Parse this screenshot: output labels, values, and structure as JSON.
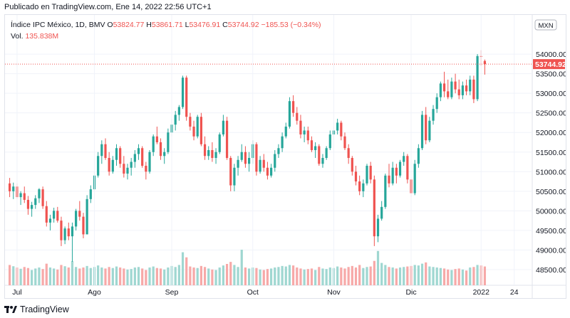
{
  "publisher": "Publicado en TradingView.com, Ene 14, 2022 22:56 UTC+1",
  "footer": {
    "brand": "TradingView"
  },
  "legend": {
    "symbol": "Índice IPC México, 1D, BMV",
    "o_label": "O",
    "o_value": "53824.77",
    "h_label": "H",
    "h_value": "53861.71",
    "l_label": "L",
    "l_value": "53476.91",
    "c_label": "C",
    "c_value": "53744.92",
    "change": "−185.53 (−0.34%)",
    "vol_label": "Vol.",
    "vol_value": "135.838M"
  },
  "colors": {
    "up": "#26a69a",
    "down": "#ef5350",
    "up_vol": "#9fd7d1",
    "down_vol": "#f7a9a8",
    "grid": "#f0f3fa",
    "axis_text": "#131722"
  },
  "chart_data": {
    "type": "candlestick",
    "title": "Índice IPC México, 1D, BMV",
    "currency": "MXN",
    "last_price": "53744.92",
    "ylim": [
      48100,
      55000
    ],
    "y_ticks": [
      "48500.00",
      "49000.00",
      "49500.00",
      "50000.00",
      "50500.00",
      "51000.00",
      "51500.00",
      "52000.00",
      "52500.00",
      "53000.00",
      "53500.00",
      "54000.00"
    ],
    "x_ticks": [
      "Jul",
      "Ago",
      "Sep",
      "Oct",
      "Nov",
      "Dic",
      "2022",
      "24"
    ],
    "grid": true,
    "candles": [
      [
        50700,
        50840,
        50350,
        50500,
        80
      ],
      [
        50500,
        50720,
        50300,
        50620,
        75
      ],
      [
        50620,
        50700,
        50300,
        50350,
        70
      ],
      [
        50350,
        50500,
        50150,
        50450,
        65
      ],
      [
        50450,
        50620,
        50200,
        50280,
        72
      ],
      [
        50280,
        50380,
        49900,
        50050,
        68
      ],
      [
        50050,
        50230,
        49850,
        50150,
        60
      ],
      [
        50150,
        50400,
        50050,
        50320,
        66
      ],
      [
        50320,
        50580,
        50200,
        50550,
        70
      ],
      [
        50550,
        50620,
        50050,
        50120,
        64
      ],
      [
        50120,
        50250,
        49600,
        49700,
        85
      ],
      [
        49700,
        49900,
        49500,
        49800,
        70
      ],
      [
        49800,
        50080,
        49700,
        50000,
        66
      ],
      [
        50000,
        50100,
        49700,
        49750,
        62
      ],
      [
        49750,
        49850,
        49100,
        49250,
        80
      ],
      [
        49250,
        49600,
        49150,
        49550,
        75
      ],
      [
        49550,
        49700,
        49250,
        49350,
        70
      ],
      [
        49350,
        49700,
        48700,
        49600,
        95
      ],
      [
        49600,
        50050,
        49500,
        50000,
        72
      ],
      [
        50000,
        50250,
        49750,
        49850,
        66
      ],
      [
        49850,
        49950,
        49300,
        49400,
        70
      ],
      [
        49400,
        50400,
        49400,
        50300,
        76
      ],
      [
        50300,
        50650,
        50200,
        50550,
        68
      ],
      [
        50550,
        51000,
        50500,
        50900,
        72
      ],
      [
        50900,
        51500,
        50850,
        51400,
        78
      ],
      [
        51400,
        51800,
        51200,
        51700,
        70
      ],
      [
        51700,
        51850,
        51300,
        51350,
        66
      ],
      [
        51350,
        51500,
        50900,
        51000,
        72
      ],
      [
        51000,
        51400,
        50950,
        51300,
        68
      ],
      [
        51300,
        51700,
        51150,
        51600,
        74
      ],
      [
        51600,
        51650,
        51100,
        51200,
        70
      ],
      [
        51200,
        51400,
        50850,
        50950,
        66
      ],
      [
        50950,
        51200,
        50800,
        51100,
        62
      ],
      [
        51100,
        51350,
        50900,
        51250,
        64
      ],
      [
        51250,
        51550,
        51100,
        51450,
        70
      ],
      [
        51450,
        51700,
        51300,
        51600,
        72
      ],
      [
        51600,
        51650,
        51100,
        51150,
        66
      ],
      [
        51150,
        51250,
        50800,
        51000,
        60
      ],
      [
        51000,
        51550,
        50950,
        51500,
        70
      ],
      [
        51500,
        51950,
        51400,
        51900,
        74
      ],
      [
        51900,
        52150,
        51700,
        51750,
        68
      ],
      [
        51750,
        51850,
        51300,
        51400,
        66
      ],
      [
        51400,
        51600,
        51200,
        51500,
        62
      ],
      [
        51500,
        52100,
        51450,
        52000,
        70
      ],
      [
        52000,
        52350,
        51900,
        52200,
        76
      ],
      [
        52200,
        52550,
        52050,
        52450,
        72
      ],
      [
        52450,
        52700,
        52300,
        52650,
        80
      ],
      [
        52650,
        53450,
        52600,
        53400,
        130
      ],
      [
        53400,
        53450,
        52300,
        52400,
        110
      ],
      [
        52400,
        52500,
        52050,
        52150,
        74
      ],
      [
        52150,
        52300,
        51800,
        51900,
        70
      ],
      [
        51900,
        52450,
        51850,
        52400,
        68
      ],
      [
        52400,
        52500,
        51650,
        51700,
        76
      ],
      [
        51700,
        51900,
        51300,
        51400,
        72
      ],
      [
        51400,
        51650,
        51300,
        51550,
        66
      ],
      [
        51550,
        51750,
        51250,
        51350,
        62
      ],
      [
        51350,
        51600,
        51200,
        51500,
        60
      ],
      [
        51500,
        52000,
        51450,
        51950,
        70
      ],
      [
        51950,
        52450,
        51900,
        52300,
        78
      ],
      [
        52300,
        52400,
        51300,
        51350,
        84
      ],
      [
        51350,
        51400,
        50500,
        50650,
        92
      ],
      [
        50650,
        51200,
        50500,
        51100,
        80
      ],
      [
        51100,
        51400,
        50900,
        51300,
        72
      ],
      [
        51300,
        51700,
        51250,
        51500,
        140
      ],
      [
        51500,
        51650,
        51100,
        51200,
        70
      ],
      [
        51200,
        51500,
        51000,
        51350,
        66
      ],
      [
        51350,
        51800,
        51200,
        51700,
        70
      ],
      [
        51700,
        51750,
        50900,
        51000,
        68
      ],
      [
        51000,
        51400,
        50950,
        51300,
        62
      ],
      [
        51300,
        51450,
        51000,
        51100,
        60
      ],
      [
        51100,
        51250,
        50800,
        50900,
        64
      ],
      [
        50900,
        51200,
        50850,
        51100,
        66
      ],
      [
        51100,
        51550,
        51000,
        51450,
        70
      ],
      [
        51450,
        51700,
        51350,
        51600,
        72
      ],
      [
        51600,
        52000,
        51500,
        51900,
        76
      ],
      [
        51900,
        52250,
        51850,
        52150,
        74
      ],
      [
        52150,
        52900,
        52100,
        52800,
        80
      ],
      [
        52800,
        52950,
        52400,
        52500,
        78
      ],
      [
        52500,
        52650,
        52200,
        52300,
        70
      ],
      [
        52300,
        52450,
        51850,
        51950,
        66
      ],
      [
        51950,
        52150,
        51750,
        52050,
        62
      ],
      [
        52050,
        52150,
        51700,
        51800,
        64
      ],
      [
        51800,
        51900,
        51500,
        51550,
        66
      ],
      [
        51550,
        51750,
        51350,
        51650,
        60
      ],
      [
        51650,
        51700,
        51150,
        51200,
        72
      ],
      [
        51200,
        51450,
        51100,
        51350,
        66
      ],
      [
        51350,
        51650,
        51300,
        51600,
        64
      ],
      [
        51600,
        52050,
        51550,
        51950,
        70
      ],
      [
        51950,
        52150,
        51800,
        52050,
        68
      ],
      [
        52050,
        52350,
        51950,
        52250,
        74
      ],
      [
        52250,
        52300,
        51800,
        51900,
        70
      ],
      [
        51900,
        52000,
        51550,
        51600,
        66
      ],
      [
        51600,
        51700,
        51200,
        51350,
        72
      ],
      [
        51350,
        51400,
        50900,
        51000,
        76
      ],
      [
        51000,
        51150,
        50650,
        50750,
        70
      ],
      [
        50750,
        50900,
        50400,
        50500,
        80
      ],
      [
        50500,
        50800,
        50350,
        50700,
        68
      ],
      [
        50700,
        51200,
        50650,
        51150,
        72
      ],
      [
        51150,
        51250,
        50700,
        50800,
        74
      ],
      [
        50800,
        50900,
        49100,
        49350,
        96
      ],
      [
        49350,
        49900,
        49200,
        49800,
        135
      ],
      [
        49800,
        50250,
        49750,
        50100,
        88
      ],
      [
        50100,
        50950,
        50050,
        50900,
        80
      ],
      [
        50900,
        51200,
        50600,
        50700,
        72
      ],
      [
        50700,
        51250,
        50650,
        51100,
        70
      ],
      [
        51100,
        51200,
        50700,
        50900,
        66
      ],
      [
        50900,
        51300,
        50850,
        51250,
        70
      ],
      [
        51250,
        51500,
        51150,
        51400,
        72
      ],
      [
        51400,
        51450,
        50700,
        50800,
        74
      ],
      [
        50800,
        50850,
        50350,
        50450,
        76
      ],
      [
        50450,
        51300,
        50400,
        51200,
        80
      ],
      [
        51200,
        51700,
        51100,
        51600,
        78
      ],
      [
        51600,
        52550,
        51550,
        52450,
        85
      ],
      [
        52450,
        52650,
        51700,
        51800,
        90
      ],
      [
        51800,
        52400,
        51750,
        52300,
        74
      ],
      [
        52300,
        52700,
        52200,
        52600,
        72
      ],
      [
        52600,
        53000,
        52500,
        52900,
        70
      ],
      [
        52900,
        53300,
        52800,
        53250,
        68
      ],
      [
        53250,
        53550,
        52900,
        53050,
        66
      ],
      [
        53050,
        53350,
        52850,
        52900,
        62
      ],
      [
        52900,
        53400,
        52850,
        53300,
        60
      ],
      [
        53300,
        53500,
        53000,
        53100,
        64
      ],
      [
        53100,
        53350,
        52850,
        52950,
        66
      ],
      [
        52950,
        53300,
        52850,
        53200,
        62
      ],
      [
        53200,
        53350,
        52950,
        53050,
        58
      ],
      [
        53050,
        53450,
        52950,
        53350,
        70
      ],
      [
        53350,
        53450,
        52750,
        52850,
        72
      ],
      [
        52850,
        54000,
        52800,
        53950,
        80
      ],
      [
        53950,
        54100,
        53700,
        53930,
        78
      ],
      [
        53824.77,
        53861.71,
        53476.91,
        53744.92,
        74
      ]
    ]
  }
}
